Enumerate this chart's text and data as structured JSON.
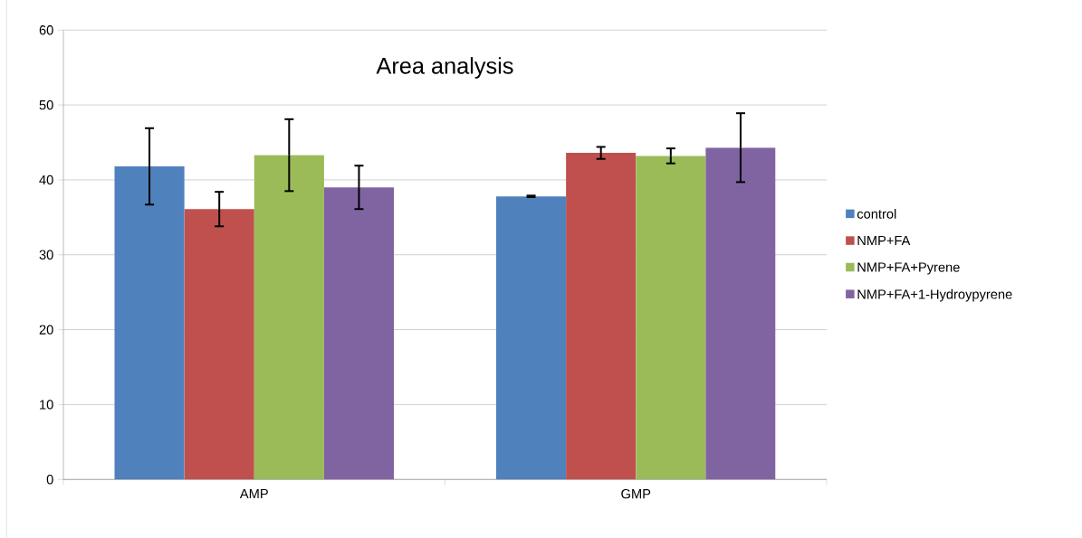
{
  "chart_data": {
    "type": "bar",
    "title": "Area analysis",
    "categories": [
      "AMP",
      "GMP"
    ],
    "series": [
      {
        "name": "control",
        "color": "#4f81bd",
        "values": [
          41.8,
          37.8
        ],
        "errors": [
          5.1,
          0.1
        ]
      },
      {
        "name": "NMP+FA",
        "color": "#c0504d",
        "values": [
          36.1,
          43.6
        ],
        "errors": [
          2.3,
          0.8
        ]
      },
      {
        "name": "NMP+FA+Pyrene",
        "color": "#9bbb59",
        "values": [
          43.3,
          43.2
        ],
        "errors": [
          4.8,
          1.0
        ]
      },
      {
        "name": "NMP+FA+1-Hydroypyrene",
        "color": "#8064a2",
        "values": [
          39.0,
          44.3
        ],
        "errors": [
          2.9,
          4.6
        ]
      }
    ],
    "ylim": [
      0,
      60
    ],
    "yticks": [
      0,
      10,
      20,
      30,
      40,
      50,
      60
    ],
    "grid": "y",
    "legend": "right"
  }
}
